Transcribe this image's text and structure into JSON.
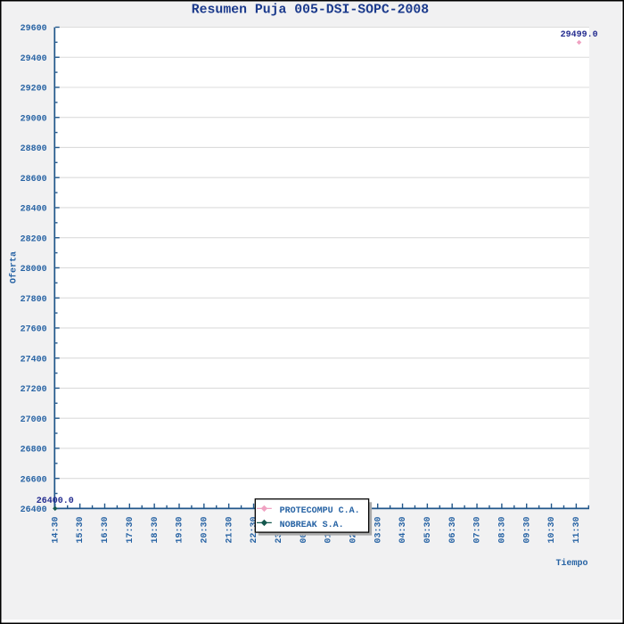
{
  "chart_data": {
    "type": "line",
    "title": "Resumen Puja 005-DSI-SOPC-2008",
    "xlabel": "Tiempo",
    "ylabel": "Oferta",
    "ylim": [
      26400,
      29600
    ],
    "y_major_tick_step": 200,
    "y_minor_tick_step": 100,
    "y_tick_labels": [
      "26400",
      "26600",
      "26800",
      "27000",
      "27200",
      "27400",
      "27600",
      "27800",
      "28000",
      "28200",
      "28400",
      "28600",
      "28800",
      "29000",
      "29200",
      "29400",
      "29600"
    ],
    "x_tick_labels": [
      "14:30",
      "15:30",
      "16:30",
      "17:30",
      "18:30",
      "19:30",
      "20:30",
      "21:30",
      "22:30",
      "23:30",
      "00:30",
      "01:30",
      "02:30",
      "03:30",
      "04:30",
      "05:30",
      "06:30",
      "07:30",
      "08:30",
      "09:30",
      "10:30",
      "11:30"
    ],
    "x_minor_ticks_per_interval": 1,
    "grid": "horizontal-only",
    "series": [
      {
        "name": "PROTECOMPU C.A.",
        "color": "#F0A2C2",
        "marker": "diamond",
        "points": [
          {
            "x_hours_from_start": 21.115,
            "y": 29499.0,
            "label": "29499.0"
          }
        ]
      },
      {
        "name": "NOBREAK S.A.",
        "color": "#15584E",
        "marker": "diamond",
        "points": [
          {
            "x_hours_from_start": 0.0,
            "y": 26400.0,
            "label": "26400.0"
          }
        ]
      }
    ],
    "legend": {
      "position": "bottom-center",
      "entries": [
        "PROTECOMPU C.A.",
        "NOBREAK S.A."
      ]
    },
    "colors": {
      "background": "#F1F1F2",
      "plot_background": "#FFFFFF",
      "frame_border": "#000000",
      "grid": "#DCDCDC",
      "axis": "#20568A",
      "tick_label": "#2763A4",
      "title": "#1B3A8C",
      "point_label": "#232B8F",
      "legend_background": "#FFFFFF",
      "legend_border": "#000000",
      "legend_shadow": "#AAAAAA",
      "legend_text": "#2763A4"
    }
  }
}
